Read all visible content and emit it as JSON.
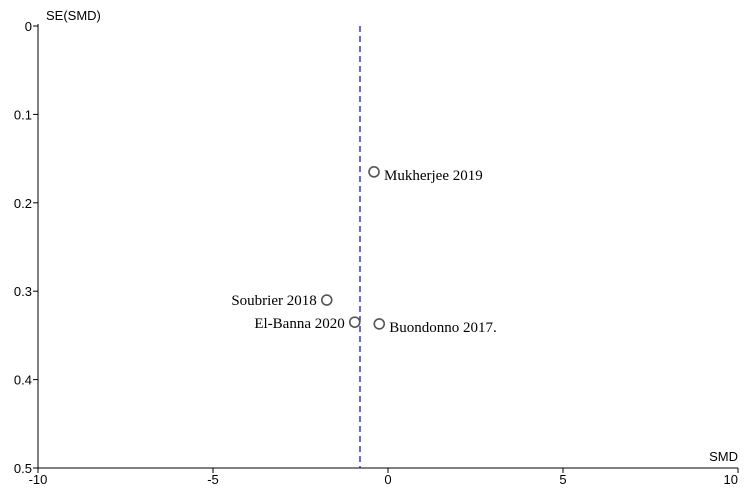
{
  "chart_data": {
    "type": "scatter",
    "title": "",
    "xlabel": "SMD",
    "ylabel": "SE(SMD)",
    "xlim": [
      -10,
      10
    ],
    "ylim": [
      0,
      0.5
    ],
    "y_inverted": true,
    "grid": false,
    "x_ticks": [
      {
        "value": -10,
        "label": "-10"
      },
      {
        "value": -5,
        "label": "-5"
      },
      {
        "value": 0,
        "label": "0"
      },
      {
        "value": 5,
        "label": "5"
      },
      {
        "value": 10,
        "label": "10"
      }
    ],
    "y_ticks": [
      {
        "value": 0,
        "label": "0"
      },
      {
        "value": 0.1,
        "label": "0.1"
      },
      {
        "value": 0.2,
        "label": "0.2"
      },
      {
        "value": 0.3,
        "label": "0.3"
      },
      {
        "value": 0.4,
        "label": "0.4"
      },
      {
        "value": 0.5,
        "label": "0.5"
      }
    ],
    "reference_line": {
      "x": -0.8,
      "color": "#1a1ab8",
      "style": "dashed"
    },
    "points": [
      {
        "label": "Mukherjee 2019",
        "x": -0.4,
        "y": 0.165
      },
      {
        "label": "Soubrier 2018",
        "x": -1.75,
        "y": 0.31
      },
      {
        "label": "El-Banna 2020",
        "x": -0.95,
        "y": 0.335
      },
      {
        "label": "Buondonno 2017.",
        "x": -0.25,
        "y": 0.337
      }
    ],
    "colors": {
      "axis": "#000000",
      "marker_edge": "#555555",
      "reference_line": "#1a1ab8"
    }
  }
}
